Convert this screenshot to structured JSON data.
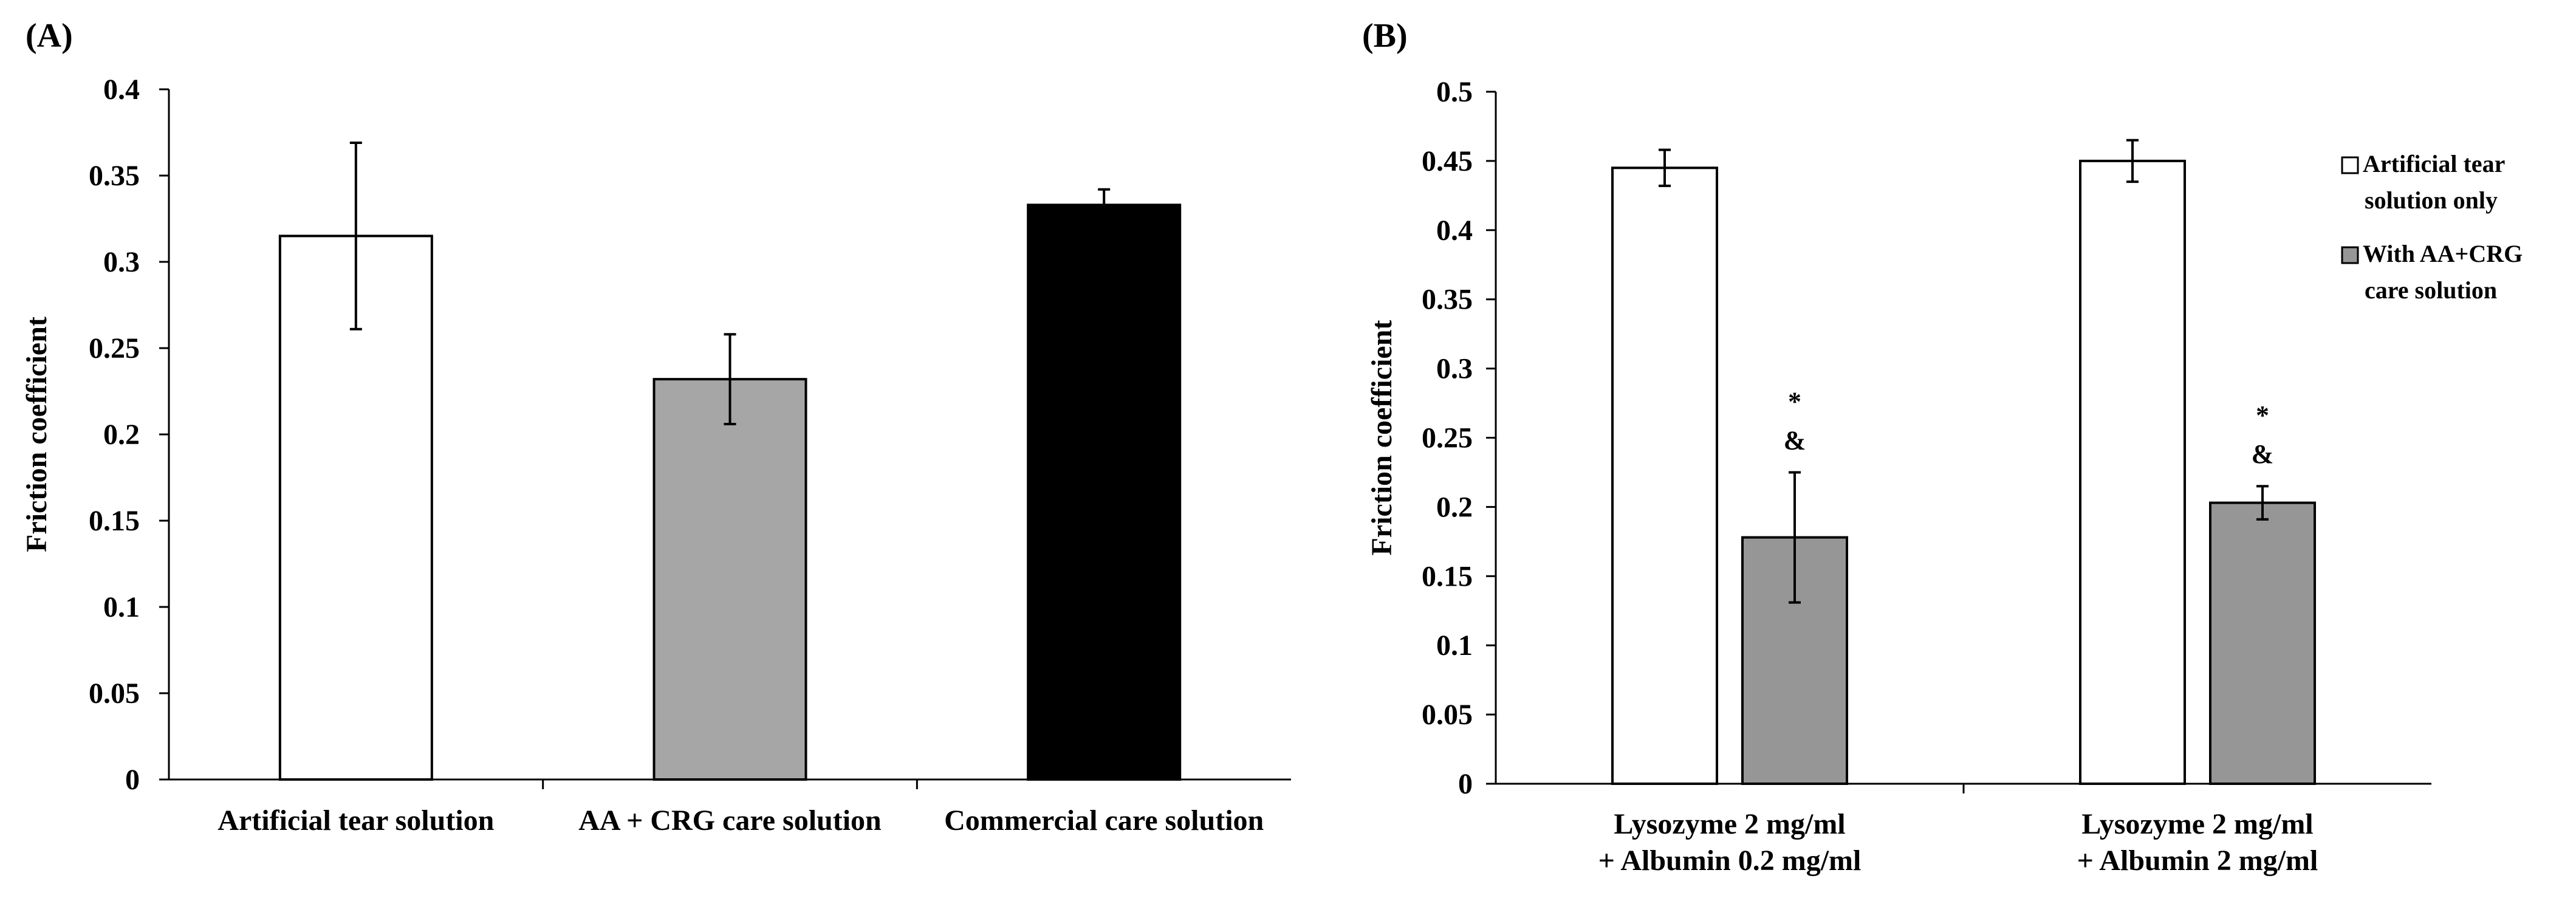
{
  "chart_data": [
    {
      "type": "bar",
      "panel_label": "(A)",
      "title": "",
      "xlabel": "",
      "ylabel": "Friction coefficient",
      "ylim": [
        0,
        0.4
      ],
      "y_ticks": [
        "0",
        "0.05",
        "0.1",
        "0.15",
        "0.2",
        "0.25",
        "0.3",
        "0.35",
        "0.4"
      ],
      "categories": [
        "Artificial tear solution",
        "AA + CRG care solution",
        "Commercial care solution"
      ],
      "values": [
        0.315,
        0.232,
        0.333
      ],
      "errors": [
        0.054,
        0.026,
        0.009
      ],
      "bar_colors": [
        "#ffffff",
        "#a6a6a6",
        "#000000"
      ],
      "grid": false
    },
    {
      "type": "bar",
      "panel_label": "(B)",
      "title": "",
      "xlabel": "",
      "ylabel": "Friction coefficient",
      "ylim": [
        0,
        0.5
      ],
      "y_ticks": [
        "0",
        "0.05",
        "0.1",
        "0.15",
        "0.2",
        "0.25",
        "0.3",
        "0.35",
        "0.4",
        "0.45",
        "0.5"
      ],
      "categories": [
        [
          "Lysozyme 2 mg/ml",
          "+ Albumin 0.2 mg/ml"
        ],
        [
          "Lysozyme 2 mg/ml",
          "+ Albumin 2 mg/ml"
        ]
      ],
      "series": [
        {
          "name": "Artificial tear solution only",
          "legend_lines": [
            "Artificial tear",
            "solution only"
          ],
          "values": [
            0.445,
            0.45
          ],
          "errors": [
            0.013,
            0.015
          ],
          "color": "#ffffff"
        },
        {
          "name": "With AA+CRG care solution",
          "legend_lines": [
            "With AA+CRG",
            "care solution"
          ],
          "values": [
            0.178,
            0.203
          ],
          "errors": [
            0.047,
            0.012
          ],
          "color": "#969696"
        }
      ],
      "annotations": [
        {
          "category_index": 0,
          "series_index": 1,
          "lines": [
            "*",
            "&"
          ]
        },
        {
          "category_index": 1,
          "series_index": 1,
          "lines": [
            "*",
            "&"
          ]
        }
      ],
      "legend_position": "right",
      "grid": false
    }
  ]
}
